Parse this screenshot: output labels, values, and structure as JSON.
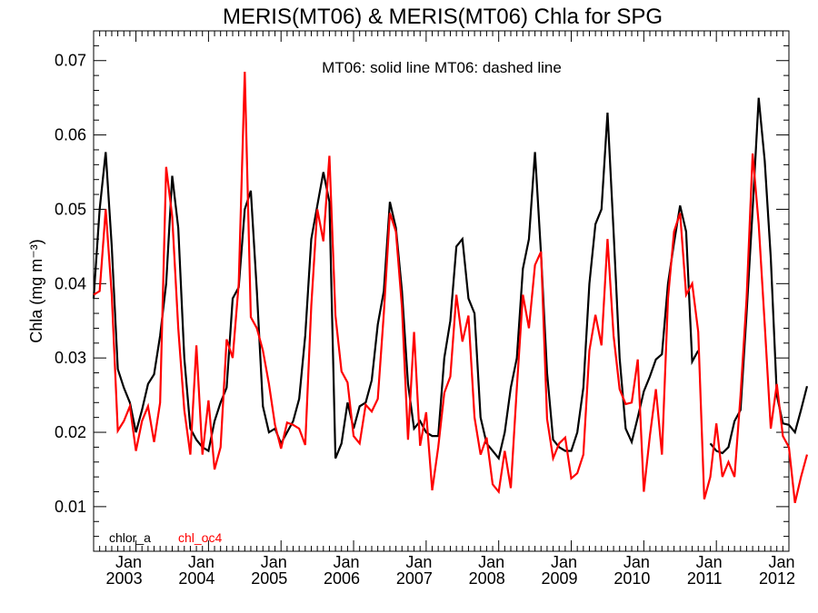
{
  "chart_data": {
    "type": "line",
    "title": "MERIS(MT06) & MERIS(MT06)  Chla for SPG",
    "annotation": "MT06: solid line   MT06: dashed line",
    "ylabel": "Chla (mg m⁻³)",
    "xlabel": "",
    "ylim": [
      0.004,
      0.074
    ],
    "yticks": [
      0.01,
      0.02,
      0.03,
      0.04,
      0.05,
      0.06,
      0.07
    ],
    "ytick_labels": [
      "0.01",
      "0.02",
      "0.03",
      "0.04",
      "0.05",
      "0.06",
      "0.07"
    ],
    "xlim": [
      "2002-06",
      "2012-01"
    ],
    "xticks": [
      {
        "month": "2003-01",
        "line1": "Jan",
        "line2": "2003"
      },
      {
        "month": "2004-01",
        "line1": "Jan",
        "line2": "2004"
      },
      {
        "month": "2005-01",
        "line1": "Jan",
        "line2": "2005"
      },
      {
        "month": "2006-01",
        "line1": "Jan",
        "line2": "2006"
      },
      {
        "month": "2007-01",
        "line1": "Jan",
        "line2": "2007"
      },
      {
        "month": "2008-01",
        "line1": "Jan",
        "line2": "2008"
      },
      {
        "month": "2009-01",
        "line1": "Jan",
        "line2": "2009"
      },
      {
        "month": "2010-01",
        "line1": "Jan",
        "line2": "2010"
      },
      {
        "month": "2011-01",
        "line1": "Jan",
        "line2": "2011"
      },
      {
        "month": "2012-01",
        "line1": "Jan",
        "line2": "2012"
      }
    ],
    "grid": false,
    "legend_position": "bottom-left",
    "series": [
      {
        "name": "chlor_a",
        "color": "#000000",
        "style": "solid",
        "start": "2002-06",
        "values": [
          0.038,
          0.05,
          0.0577,
          0.045,
          0.0285,
          0.026,
          0.024,
          0.02,
          0.023,
          0.0265,
          0.0278,
          0.033,
          0.04,
          0.0545,
          0.0475,
          0.03,
          0.0205,
          0.019,
          0.018,
          0.0175,
          0.0215,
          0.024,
          0.026,
          0.038,
          0.0395,
          0.05,
          0.0525,
          0.039,
          0.0235,
          0.02,
          0.0205,
          0.0185,
          0.02,
          0.0215,
          0.0245,
          0.033,
          0.046,
          0.0505,
          0.055,
          0.051,
          0.0165,
          0.0185,
          0.024,
          0.0205,
          0.0235,
          0.024,
          0.027,
          0.0345,
          0.039,
          0.051,
          0.0475,
          0.039,
          0.0265,
          0.0205,
          0.0215,
          0.02,
          0.0195,
          0.0195,
          0.03,
          0.035,
          0.045,
          0.046,
          0.038,
          0.036,
          0.022,
          0.0185,
          0.0175,
          0.0165,
          0.02,
          0.026,
          0.03,
          0.042,
          0.046,
          0.0577,
          0.044,
          0.028,
          0.019,
          0.018,
          0.0175,
          0.0175,
          0.02,
          0.026,
          0.04,
          0.048,
          0.05,
          0.063,
          0.047,
          0.03,
          0.0205,
          0.0187,
          0.022,
          0.0255,
          0.0275,
          0.0298,
          0.0305,
          0.04,
          0.0455,
          0.0505,
          0.047,
          0.0295,
          0.031,
          null,
          0.0185,
          0.0175,
          0.0172,
          0.018,
          0.0215,
          0.023,
          0.036,
          0.05,
          0.065,
          0.0565,
          0.0435,
          0.025,
          0.0212,
          0.021,
          0.02,
          0.023,
          0.0262
        ]
      },
      {
        "name": "chl_oc4",
        "color": "#ff0000",
        "style": "solid",
        "start": "2002-06",
        "values": [
          0.0385,
          0.039,
          0.05,
          0.0385,
          0.0202,
          0.0215,
          0.0235,
          0.0175,
          0.0215,
          0.0235,
          0.0187,
          0.024,
          0.0557,
          0.049,
          0.034,
          0.023,
          0.017,
          0.0317,
          0.017,
          0.0243,
          0.015,
          0.018,
          0.0325,
          0.03,
          0.04,
          0.0685,
          0.0355,
          0.034,
          0.031,
          0.0265,
          0.021,
          0.0178,
          0.0213,
          0.021,
          0.0205,
          0.0183,
          0.037,
          0.05,
          0.0457,
          0.0572,
          0.0357,
          0.0282,
          0.0267,
          0.0195,
          0.0185,
          0.0237,
          0.0228,
          0.0245,
          0.036,
          0.0495,
          0.047,
          0.0368,
          0.019,
          0.0335,
          0.0182,
          0.0227,
          0.0122,
          0.018,
          0.0253,
          0.0275,
          0.0385,
          0.0322,
          0.0357,
          0.022,
          0.017,
          0.0193,
          0.013,
          0.012,
          0.0175,
          0.0125,
          0.026,
          0.0385,
          0.034,
          0.0425,
          0.0443,
          0.0218,
          0.0165,
          0.0185,
          0.0193,
          0.0138,
          0.0145,
          0.017,
          0.031,
          0.0358,
          0.0317,
          0.046,
          0.033,
          0.0258,
          0.0238,
          0.024,
          0.0298,
          0.012,
          0.0195,
          0.0258,
          0.017,
          0.038,
          0.047,
          0.0495,
          0.0385,
          0.04,
          0.0335,
          0.011,
          0.014,
          0.0212,
          0.014,
          0.016,
          0.014,
          0.025,
          0.038,
          0.0575,
          0.048,
          0.0345,
          0.0205,
          0.0265,
          0.0195,
          0.018,
          0.0105,
          0.014,
          0.017
        ]
      }
    ]
  }
}
